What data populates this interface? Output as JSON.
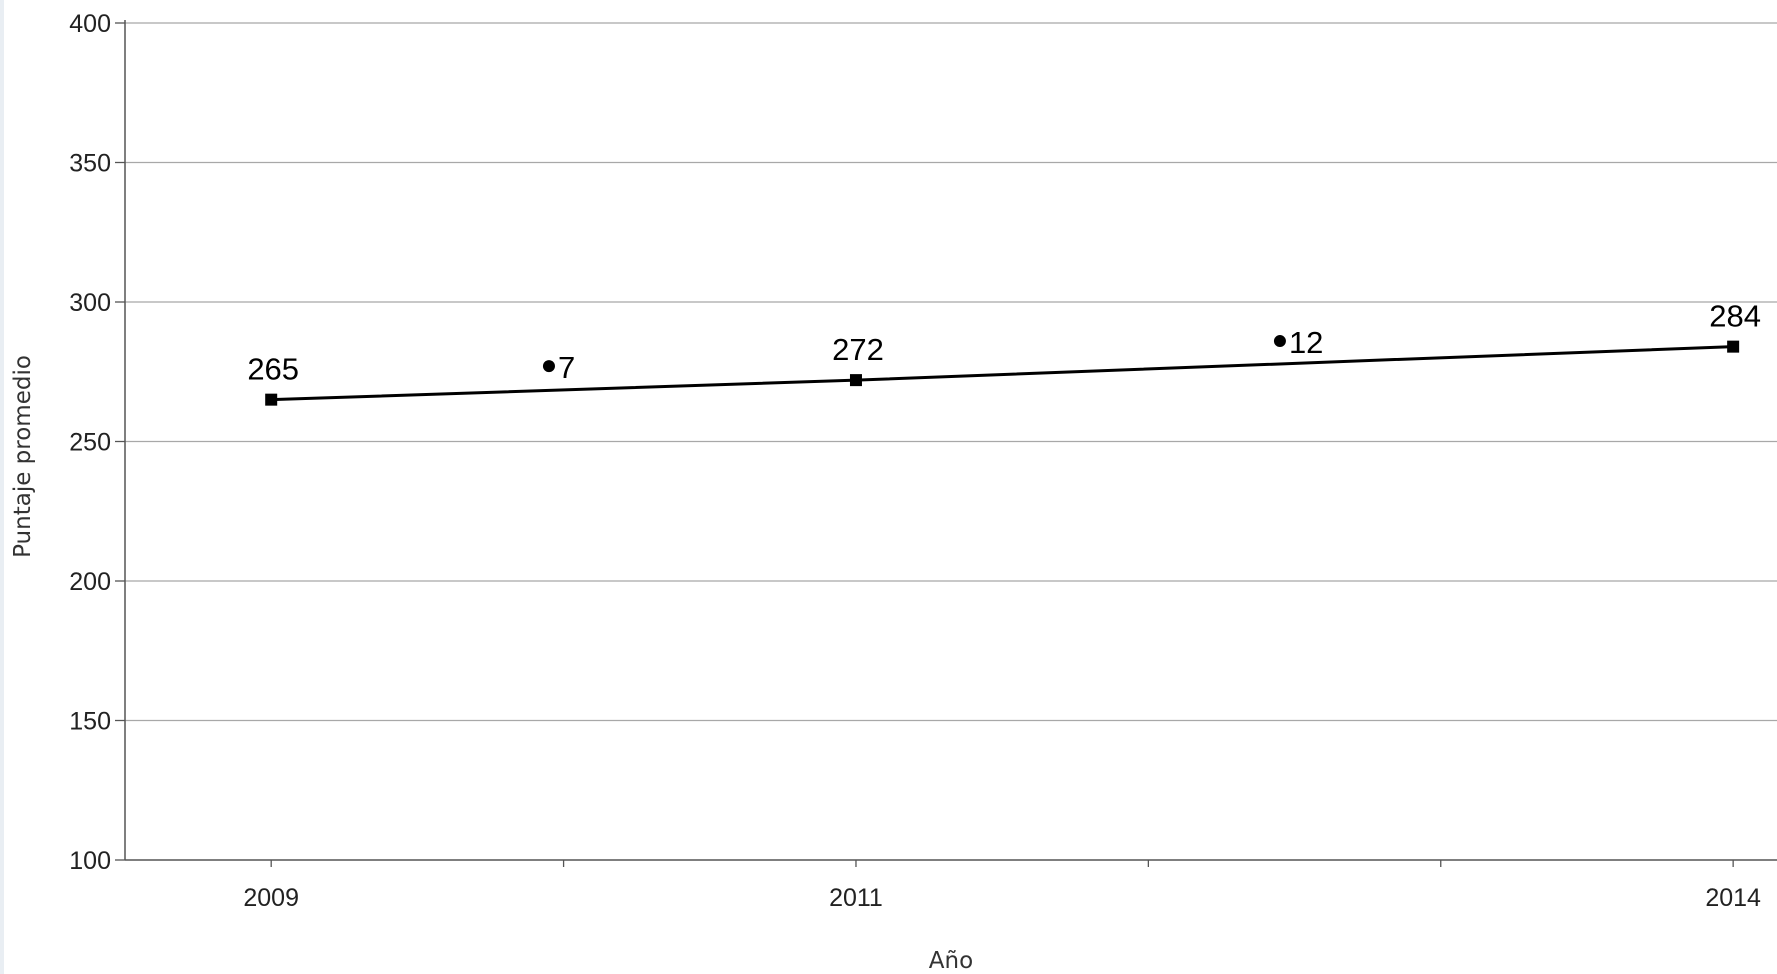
{
  "chart_data": {
    "type": "line",
    "title": "",
    "xlabel": "Año",
    "ylabel": "Puntaje promedio",
    "ylim": [
      100,
      400
    ],
    "yticks": [
      100,
      150,
      200,
      250,
      300,
      350,
      400
    ],
    "xlim": [
      2008.5,
      2014.15
    ],
    "xticks": [
      2009,
      2011,
      2014
    ],
    "x_minor_ticks": [
      2010,
      2012,
      2013
    ],
    "grid": true,
    "legend": "none",
    "series": [
      {
        "x": [
          2009,
          2011,
          2014
        ],
        "values": [
          265,
          272,
          284
        ],
        "data_labels": [
          "265",
          "272",
          "284"
        ],
        "marker": "square",
        "color": "#000000"
      }
    ],
    "annotations": [
      {
        "x": 2009.95,
        "y": 277,
        "text": "7",
        "marker": "circle"
      },
      {
        "x": 2012.45,
        "y": 286,
        "text": "12",
        "marker": "circle"
      }
    ]
  }
}
